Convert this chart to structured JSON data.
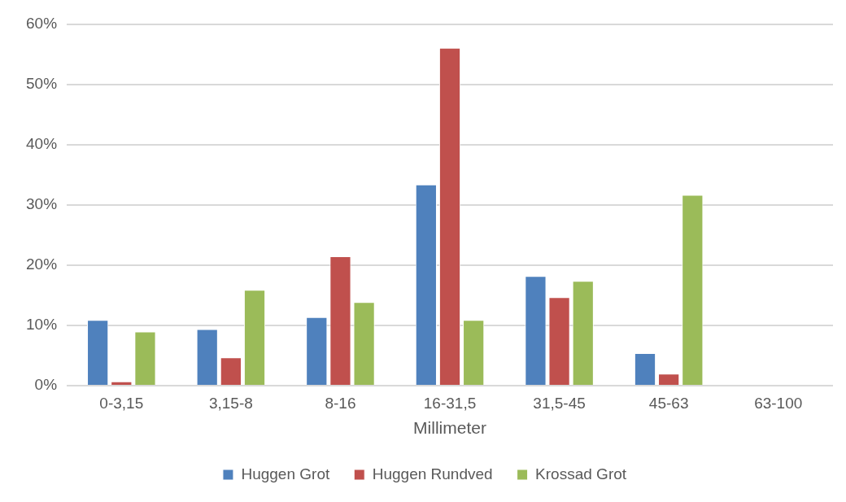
{
  "chart_data": {
    "type": "bar",
    "xlabel": "Millimeter",
    "categories": [
      "0-3,15",
      "3,15-8",
      "8-16",
      "16-31,5",
      "31,5-45",
      "45-63",
      "63-100"
    ],
    "series": [
      {
        "name": "Huggen Grot",
        "color": "#4f81bd",
        "values": [
          10.9,
          9.4,
          11.4,
          33.4,
          18.2,
          5.4,
          0
        ]
      },
      {
        "name": "Huggen Rundved",
        "color": "#c0504d",
        "values": [
          0.7,
          4.7,
          21.5,
          56.1,
          14.7,
          2.0,
          0
        ]
      },
      {
        "name": "Krossad Grot",
        "color": "#9bbb59",
        "values": [
          9.0,
          15.9,
          13.9,
          10.9,
          17.4,
          31.7,
          0
        ]
      }
    ],
    "ylim": [
      0,
      60
    ],
    "yticks": [
      {
        "value": 0,
        "label": "0%"
      },
      {
        "value": 10,
        "label": "10%"
      },
      {
        "value": 20,
        "label": "20%"
      },
      {
        "value": 30,
        "label": "30%"
      },
      {
        "value": 40,
        "label": "40%"
      },
      {
        "value": 50,
        "label": "50%"
      },
      {
        "value": 60,
        "label": "60%"
      }
    ],
    "grid": "y",
    "legend": "bottom"
  }
}
